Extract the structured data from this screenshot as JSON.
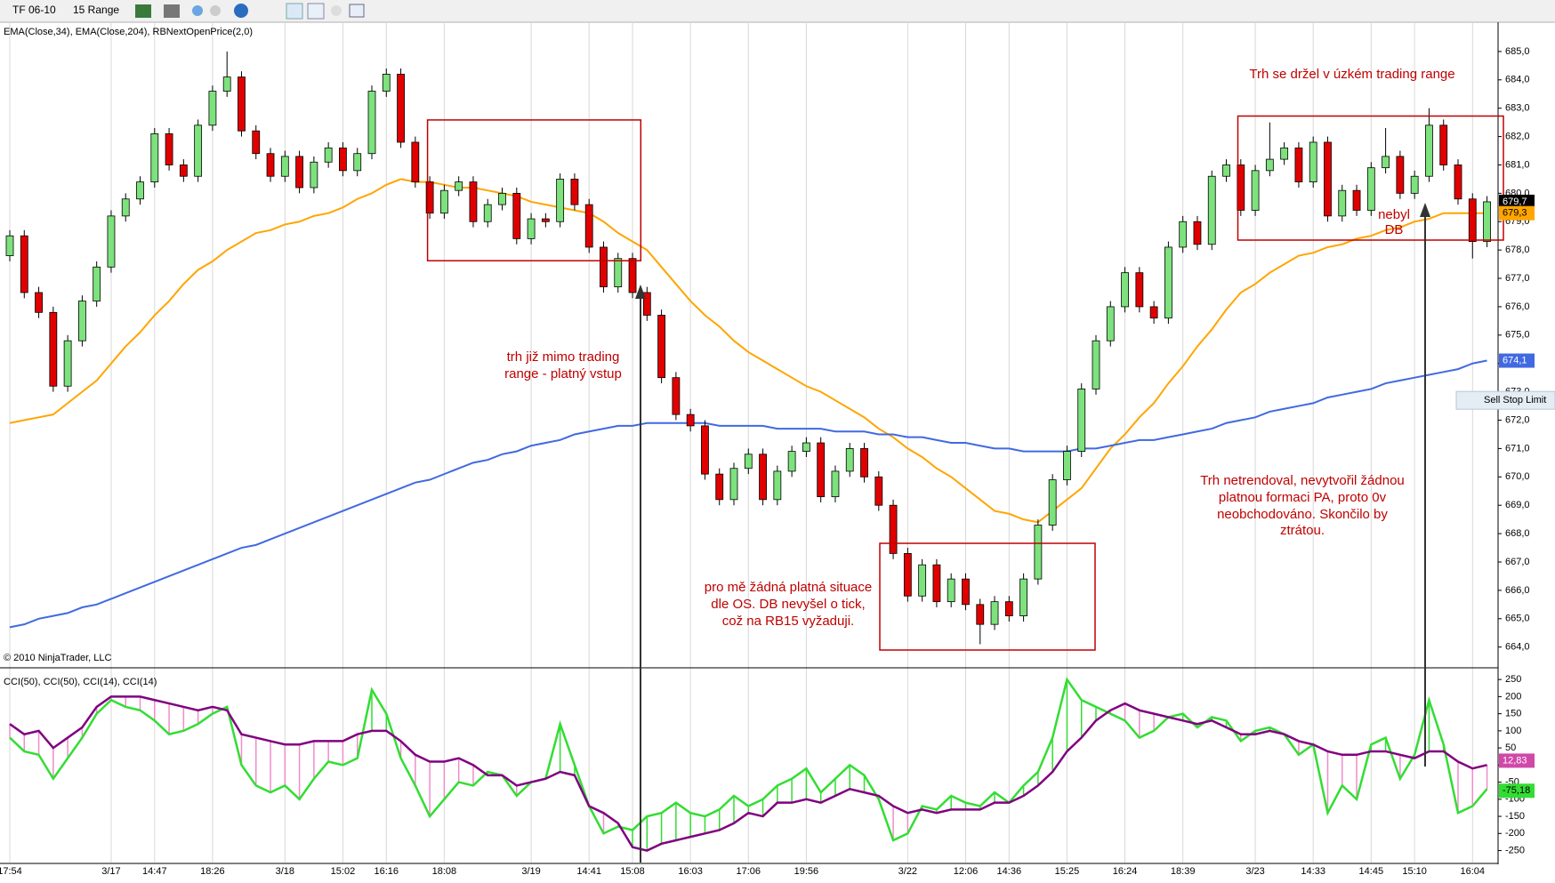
{
  "toolbar": {
    "instrument": "TF 06-10",
    "period": "15 Range"
  },
  "annotations": [
    [
      "Trh se držel v úzkém trading range"
    ],
    [
      "trh již mimo trading",
      "range - platný vstup"
    ],
    [
      "pro mě žádná platná situace",
      "dle OS. DB nevyšel o tick,",
      "což na RB15 vyžaduji."
    ],
    [
      "Trh netrendoval, nevytvořil žádnou",
      "platnou formaci PA, proto 0v",
      "neobchodováno. Skončilo by",
      "ztrátou."
    ],
    [
      "nebyl",
      "DB"
    ]
  ],
  "chart_data": [
    {
      "type": "candlestick",
      "legend_text": "EMA(Close,34), EMA(Close,204), RBNextOpenPrice(2,0)",
      "copyright": "© 2010 NinjaTrader, LLC",
      "up_color": "#7de27d",
      "down_color": "#e00000",
      "ylim": [
        663.3,
        686.0
      ],
      "yticks": [
        {
          "value": 664,
          "label": "664,0"
        },
        {
          "value": 665,
          "label": "665,0"
        },
        {
          "value": 666,
          "label": "666,0"
        },
        {
          "value": 667,
          "label": "667,0"
        },
        {
          "value": 668,
          "label": "668,0"
        },
        {
          "value": 669,
          "label": "669,0"
        },
        {
          "value": 670,
          "label": "670,0"
        },
        {
          "value": 671,
          "label": "671,0"
        },
        {
          "value": 672,
          "label": "672,0"
        },
        {
          "value": 673,
          "label": "673,0"
        },
        {
          "value": 674,
          "label": "674,0"
        },
        {
          "value": 675,
          "label": "675,0"
        },
        {
          "value": 676,
          "label": "676,0"
        },
        {
          "value": 677,
          "label": "677,0"
        },
        {
          "value": 678,
          "label": "678,0"
        },
        {
          "value": 679,
          "label": "679,0"
        },
        {
          "value": 680,
          "label": "680,0"
        },
        {
          "value": 681,
          "label": "681,0"
        },
        {
          "value": 682,
          "label": "682,0"
        },
        {
          "value": 683,
          "label": "683,0"
        },
        {
          "value": 684,
          "label": "684,0"
        },
        {
          "value": 685,
          "label": "685,0"
        }
      ],
      "open": [
        677.8,
        678.5,
        676.5,
        675.8,
        673.2,
        674.8,
        676.2,
        677.4,
        679.2,
        679.8,
        680.4,
        682.1,
        681.0,
        680.6,
        682.4,
        683.6,
        684.1,
        682.2,
        681.4,
        680.6,
        681.3,
        680.2,
        681.1,
        681.6,
        680.8,
        681.4,
        683.6,
        684.2,
        681.8,
        680.4,
        679.3,
        680.1,
        680.4,
        679.0,
        679.6,
        680.0,
        678.4,
        679.1,
        679.0,
        680.5,
        679.6,
        678.1,
        676.7,
        677.7,
        676.5,
        675.7,
        673.5,
        672.2,
        671.8,
        670.1,
        669.2,
        670.3,
        670.8,
        669.2,
        670.2,
        670.9,
        671.2,
        669.3,
        670.2,
        671.0,
        670.0,
        669.0,
        667.3,
        665.8,
        666.9,
        665.6,
        666.4,
        665.5,
        664.8,
        665.6,
        665.1,
        666.4,
        668.3,
        669.9,
        670.9,
        673.1,
        674.8,
        676.0,
        677.2,
        676.0,
        675.6,
        678.1,
        679.0,
        678.2,
        680.6,
        681.0,
        679.4,
        680.8,
        681.2,
        681.6,
        680.4,
        681.8,
        679.2,
        680.1,
        679.4,
        680.9,
        681.3,
        680.0,
        680.6,
        682.4,
        681.0,
        679.8,
        678.3
      ],
      "high": [
        678.7,
        678.7,
        676.7,
        676.0,
        675.0,
        676.4,
        677.6,
        679.4,
        680.0,
        680.6,
        682.3,
        682.3,
        681.2,
        682.6,
        683.8,
        685.0,
        684.3,
        682.4,
        681.6,
        681.5,
        681.5,
        681.3,
        681.8,
        681.8,
        681.6,
        683.8,
        684.4,
        684.4,
        682.0,
        680.6,
        680.3,
        680.6,
        680.6,
        679.8,
        680.2,
        680.2,
        679.3,
        679.3,
        680.7,
        680.7,
        679.8,
        678.3,
        677.9,
        677.9,
        676.7,
        675.9,
        673.7,
        672.4,
        672.0,
        670.3,
        670.5,
        671.0,
        671.0,
        670.4,
        671.1,
        671.4,
        671.4,
        670.4,
        671.2,
        671.2,
        670.2,
        669.2,
        667.5,
        667.1,
        667.1,
        666.6,
        666.6,
        665.7,
        665.8,
        665.8,
        666.6,
        668.5,
        670.1,
        671.1,
        673.3,
        675.0,
        676.2,
        677.4,
        677.4,
        676.2,
        678.3,
        679.2,
        679.2,
        680.8,
        681.2,
        681.2,
        681.0,
        682.5,
        681.8,
        681.8,
        682.0,
        682.0,
        680.3,
        680.3,
        681.1,
        682.3,
        681.5,
        680.8,
        683.0,
        682.6,
        681.2,
        680.0,
        679.9
      ],
      "low": [
        677.6,
        676.3,
        675.6,
        673.0,
        673.0,
        674.6,
        676.0,
        677.2,
        679.0,
        679.6,
        680.2,
        680.8,
        680.4,
        680.4,
        682.2,
        683.4,
        682.0,
        681.2,
        680.4,
        680.4,
        680.0,
        680.0,
        680.9,
        680.6,
        680.6,
        681.2,
        683.4,
        681.6,
        680.2,
        679.1,
        679.1,
        679.9,
        678.8,
        678.8,
        679.4,
        678.2,
        678.2,
        678.8,
        678.8,
        679.4,
        677.9,
        676.5,
        676.5,
        676.3,
        675.5,
        673.3,
        672.0,
        671.6,
        669.9,
        669.0,
        669.0,
        670.1,
        669.0,
        669.0,
        670.0,
        670.7,
        669.1,
        669.1,
        670.0,
        669.8,
        668.8,
        667.1,
        665.6,
        665.6,
        665.4,
        665.4,
        665.3,
        664.1,
        664.6,
        664.9,
        664.9,
        666.2,
        668.1,
        669.7,
        670.7,
        672.9,
        674.6,
        675.8,
        675.8,
        675.4,
        675.4,
        677.9,
        678.0,
        678.0,
        680.4,
        679.2,
        679.2,
        680.6,
        681.0,
        680.2,
        680.2,
        679.0,
        679.0,
        679.2,
        679.2,
        680.7,
        679.8,
        679.8,
        680.4,
        680.8,
        679.6,
        677.7,
        678.1
      ],
      "close": [
        678.5,
        676.5,
        675.8,
        673.2,
        674.8,
        676.2,
        677.4,
        679.2,
        679.8,
        680.4,
        682.1,
        681.0,
        680.6,
        682.4,
        683.6,
        684.1,
        682.2,
        681.4,
        680.6,
        681.3,
        680.2,
        681.1,
        681.6,
        680.8,
        681.4,
        683.6,
        684.2,
        681.8,
        680.4,
        679.3,
        680.1,
        680.4,
        679.0,
        679.6,
        680.0,
        678.4,
        679.1,
        679.0,
        680.5,
        679.6,
        678.1,
        676.7,
        677.7,
        676.5,
        675.7,
        673.5,
        672.2,
        671.8,
        670.1,
        669.2,
        670.3,
        670.8,
        669.2,
        670.2,
        670.9,
        671.2,
        669.3,
        670.2,
        671.0,
        670.0,
        669.0,
        667.3,
        665.8,
        666.9,
        665.6,
        666.4,
        665.5,
        664.8,
        665.6,
        665.1,
        666.4,
        668.3,
        669.9,
        670.9,
        673.1,
        674.8,
        676.0,
        677.2,
        676.0,
        675.6,
        678.1,
        679.0,
        678.2,
        680.6,
        681.0,
        679.4,
        680.8,
        681.2,
        681.6,
        680.4,
        681.8,
        679.2,
        680.1,
        679.4,
        680.9,
        681.3,
        680.0,
        680.6,
        682.4,
        681.0,
        679.8,
        678.3,
        679.7
      ],
      "overlays": [
        {
          "color": "#ffa500",
          "values": [
            671.9,
            672.0,
            672.1,
            672.2,
            672.6,
            673.0,
            673.4,
            674.0,
            674.6,
            675.1,
            675.7,
            676.2,
            676.8,
            677.3,
            677.6,
            678.0,
            678.3,
            678.6,
            678.7,
            678.9,
            679.0,
            679.2,
            679.3,
            679.5,
            679.8,
            680.0,
            680.3,
            680.5,
            680.4,
            680.4,
            680.3,
            680.2,
            680.2,
            680.1,
            680.0,
            679.9,
            679.7,
            679.6,
            679.5,
            679.4,
            679.3,
            679.0,
            678.6,
            678.3,
            678.0,
            677.4,
            676.8,
            676.2,
            675.7,
            675.3,
            674.8,
            674.4,
            674.1,
            673.8,
            673.5,
            673.2,
            673.0,
            672.7,
            672.4,
            672.1,
            671.7,
            671.4,
            671.0,
            670.7,
            670.3,
            670.0,
            669.6,
            669.2,
            668.8,
            668.7,
            668.5,
            668.4,
            668.8,
            669.2,
            669.6,
            670.3,
            671.0,
            671.5,
            672.1,
            672.6,
            673.3,
            673.9,
            674.6,
            675.2,
            675.9,
            676.5,
            676.8,
            677.2,
            677.5,
            677.8,
            677.9,
            678.1,
            678.2,
            678.4,
            678.5,
            678.7,
            678.8,
            679.0,
            679.1,
            679.3,
            679.3,
            679.3,
            679.3
          ]
        },
        {
          "color": "#4169e1",
          "values": [
            664.7,
            664.8,
            665.0,
            665.1,
            665.2,
            665.4,
            665.5,
            665.7,
            665.9,
            666.1,
            666.3,
            666.5,
            666.7,
            666.9,
            667.1,
            667.3,
            667.5,
            667.6,
            667.8,
            668.0,
            668.2,
            668.4,
            668.6,
            668.8,
            669.0,
            669.2,
            669.4,
            669.6,
            669.8,
            669.9,
            670.1,
            670.3,
            670.5,
            670.6,
            670.8,
            670.9,
            671.1,
            671.2,
            671.3,
            671.5,
            671.6,
            671.7,
            671.8,
            671.8,
            671.9,
            671.9,
            671.9,
            671.9,
            671.9,
            671.8,
            671.8,
            671.8,
            671.8,
            671.7,
            671.7,
            671.7,
            671.7,
            671.6,
            671.6,
            671.6,
            671.5,
            671.5,
            671.4,
            671.4,
            671.3,
            671.2,
            671.2,
            671.1,
            671.0,
            671.0,
            670.9,
            670.9,
            670.9,
            670.9,
            671.0,
            671.0,
            671.1,
            671.2,
            671.3,
            671.3,
            671.4,
            671.5,
            671.6,
            671.7,
            671.9,
            672.0,
            672.1,
            672.3,
            672.4,
            672.5,
            672.6,
            672.8,
            672.9,
            673.0,
            673.1,
            673.3,
            673.4,
            673.5,
            673.6,
            673.7,
            673.8,
            674.0,
            674.1
          ]
        }
      ],
      "markers": [
        {
          "value": 679.7,
          "label": "679,7",
          "color": "#000000"
        },
        {
          "value": 679.3,
          "label": "679,3",
          "color": "#ffa500"
        },
        {
          "value": 674.1,
          "label": "674,1",
          "color": "#4169e1"
        }
      ],
      "order": {
        "value": 672.7,
        "label": "Sell Stop Limit"
      }
    },
    {
      "type": "cci",
      "legend_text": "CCI(50), CCI(50), CCI(14), CCI(14)",
      "ylim": [
        -285,
        279
      ],
      "yticks": [
        250,
        200,
        150,
        100,
        50,
        0,
        -50,
        -100,
        -150,
        -200,
        -250
      ],
      "categories": [
        "17:54",
        null,
        null,
        null,
        null,
        null,
        null,
        "3/17",
        null,
        null,
        "14:47",
        null,
        null,
        null,
        "18:26",
        null,
        null,
        null,
        null,
        "3/18",
        null,
        null,
        null,
        "15:02",
        null,
        null,
        "16:16",
        null,
        null,
        null,
        "18:08",
        null,
        null,
        null,
        null,
        null,
        "3/19",
        null,
        null,
        null,
        "14:41",
        null,
        null,
        "15:08",
        null,
        null,
        null,
        "16:03",
        null,
        null,
        null,
        "17:06",
        null,
        null,
        null,
        "19:56",
        null,
        null,
        null,
        null,
        null,
        null,
        "3/22",
        null,
        null,
        null,
        "12:06",
        null,
        null,
        "14:36",
        null,
        null,
        null,
        "15:25",
        null,
        null,
        null,
        "16:24",
        null,
        null,
        null,
        "18:39",
        null,
        null,
        null,
        null,
        "3/23",
        null,
        null,
        null,
        "14:33",
        null,
        null,
        null,
        "14:45",
        null,
        null,
        "15:10",
        null,
        null,
        null,
        "16:04",
        null
      ],
      "up_color": "#33dd33",
      "down_color": "#f08ccc",
      "series": [
        {
          "color": "#33dd33",
          "values": [
            80,
            40,
            30,
            -40,
            20,
            80,
            150,
            190,
            170,
            160,
            130,
            90,
            100,
            120,
            150,
            170,
            0,
            -60,
            -80,
            -60,
            -100,
            -40,
            10,
            0,
            20,
            220,
            150,
            20,
            -60,
            -150,
            -100,
            -50,
            -60,
            -20,
            -30,
            -90,
            -50,
            -40,
            120,
            0,
            -120,
            -200,
            -180,
            -190,
            -150,
            -140,
            -110,
            -140,
            -150,
            -130,
            -90,
            -120,
            -100,
            -60,
            -40,
            -10,
            -80,
            -40,
            0,
            -30,
            -100,
            -220,
            -200,
            -120,
            -130,
            -90,
            -110,
            -120,
            -80,
            -110,
            -60,
            -20,
            80,
            250,
            190,
            170,
            150,
            130,
            80,
            100,
            140,
            150,
            110,
            140,
            130,
            70,
            100,
            110,
            90,
            30,
            60,
            -140,
            -60,
            -100,
            60,
            80,
            -40,
            30,
            190,
            60,
            -140,
            -120,
            -70
          ]
        },
        {
          "color": "#800080",
          "values": [
            120,
            90,
            100,
            50,
            80,
            110,
            170,
            200,
            200,
            200,
            190,
            180,
            170,
            160,
            170,
            160,
            90,
            80,
            70,
            60,
            60,
            70,
            70,
            70,
            90,
            100,
            100,
            70,
            30,
            10,
            10,
            20,
            0,
            -30,
            -30,
            -60,
            -50,
            -40,
            -20,
            -30,
            -120,
            -140,
            -170,
            -240,
            -250,
            -230,
            -220,
            -210,
            -200,
            -190,
            -170,
            -140,
            -150,
            -110,
            -110,
            -100,
            -110,
            -90,
            -70,
            -80,
            -90,
            -120,
            -140,
            -130,
            -140,
            -130,
            -130,
            -130,
            -110,
            -110,
            -90,
            -60,
            -20,
            40,
            80,
            130,
            160,
            180,
            160,
            150,
            140,
            130,
            120,
            130,
            110,
            90,
            90,
            100,
            90,
            70,
            60,
            40,
            30,
            30,
            40,
            40,
            30,
            20,
            40,
            40,
            10,
            -10,
            0
          ]
        }
      ],
      "markers": [
        {
          "value": 12.83,
          "label": "12,83",
          "color": "#d048a8"
        },
        {
          "value": -75.18,
          "label": "-75,18",
          "color": "#33dd33"
        }
      ]
    }
  ]
}
